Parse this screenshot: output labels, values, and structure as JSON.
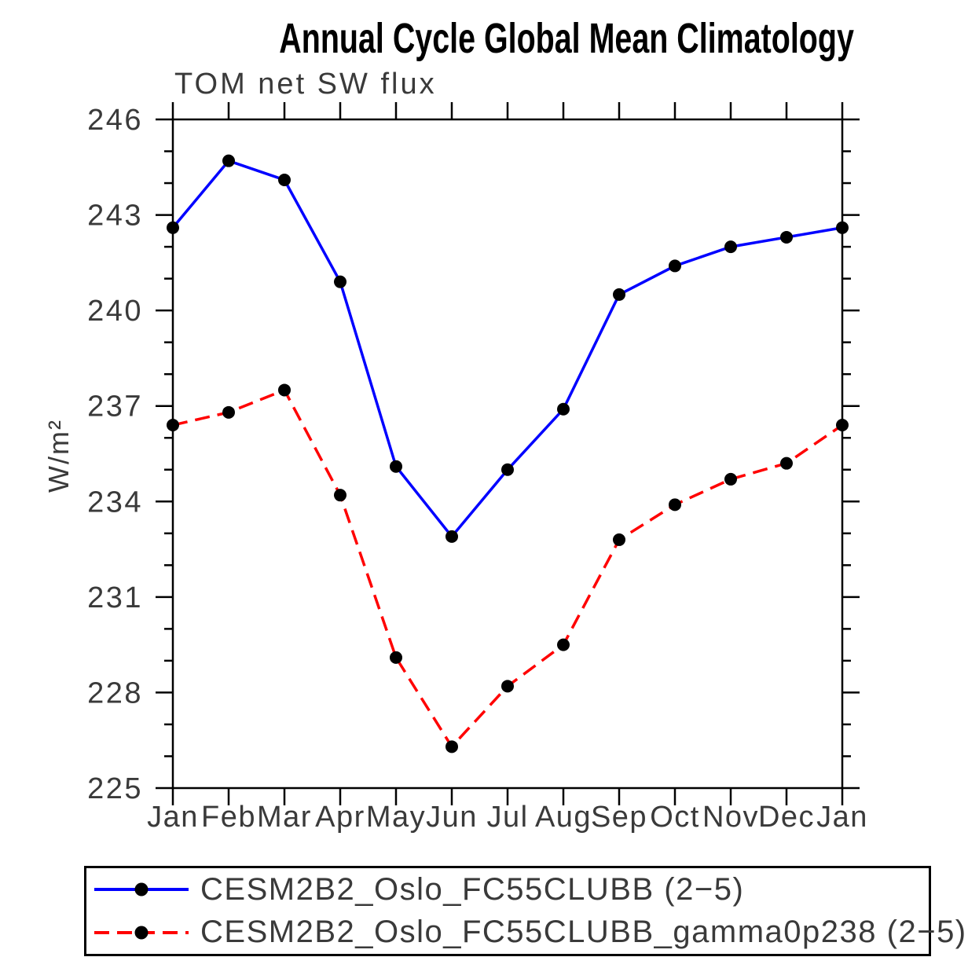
{
  "title": "Annual Cycle Global Mean Climatology",
  "subtitle": "TOM net SW flux",
  "ylabel": "W/m²",
  "chart_data": {
    "type": "line",
    "title": "Annual Cycle Global Mean Climatology",
    "subtitle": "TOM net SW flux",
    "xlabel": "",
    "ylabel": "W/m²",
    "categories": [
      "Jan",
      "Feb",
      "Mar",
      "Apr",
      "May",
      "Jun",
      "Jul",
      "Aug",
      "Sep",
      "Oct",
      "Nov",
      "Dec",
      "Jan"
    ],
    "series": [
      {
        "name": "CESM2B2_Oslo_FC55CLUBB (2−5)",
        "color": "#0000ff",
        "line_style": "solid",
        "marker": "circle",
        "marker_color": "#000000",
        "values": [
          242.6,
          244.7,
          244.1,
          240.9,
          235.1,
          232.9,
          235.0,
          236.9,
          240.5,
          241.4,
          242.0,
          242.3,
          242.6
        ]
      },
      {
        "name": "CESM2B2_Oslo_FC55CLUBB_gamma0p238 (2−5)",
        "color": "#ff0000",
        "line_style": "dashed",
        "marker": "circle",
        "marker_color": "#000000",
        "values": [
          236.4,
          236.8,
          237.5,
          234.2,
          229.1,
          226.3,
          228.2,
          229.5,
          232.8,
          233.9,
          234.7,
          235.2,
          236.4
        ]
      }
    ],
    "ylim": [
      225,
      246
    ],
    "yticks_major": [
      225,
      228,
      231,
      234,
      237,
      240,
      243,
      246
    ],
    "ytick_minor_step": 1,
    "grid": false,
    "legend_position": "bottom",
    "frame_color": "#000000",
    "text_color": "#3a3a3a"
  }
}
